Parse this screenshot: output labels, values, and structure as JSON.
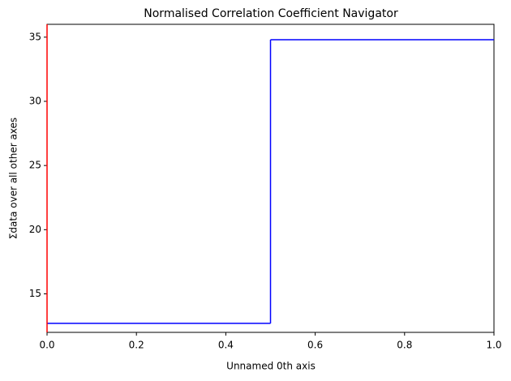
{
  "chart_data": {
    "type": "step",
    "title": "Normalised Correlation Coefficient Navigator",
    "x_label": "Unnamed 0th axis",
    "y_label": "Σdata over all other axes",
    "x": [
      0,
      0.5
    ],
    "values": [
      12.7,
      34.8
    ],
    "color": "blue",
    "xlim": [
      0,
      1
    ],
    "xticks": [
      {
        "value": 0,
        "label": "0.0"
      },
      {
        "value": 0.2,
        "label": "0.2"
      },
      {
        "value": 0.4,
        "label": "0.4"
      },
      {
        "value": 0.6,
        "label": "0.6"
      },
      {
        "value": 0.8,
        "label": "0.8"
      },
      {
        "value": 1,
        "label": "1.0"
      }
    ],
    "ylim": [
      12.0,
      36.0
    ],
    "yticks": [
      15,
      20,
      25,
      30,
      35
    ],
    "cursor_x": 0,
    "cursor_color": "red"
  }
}
